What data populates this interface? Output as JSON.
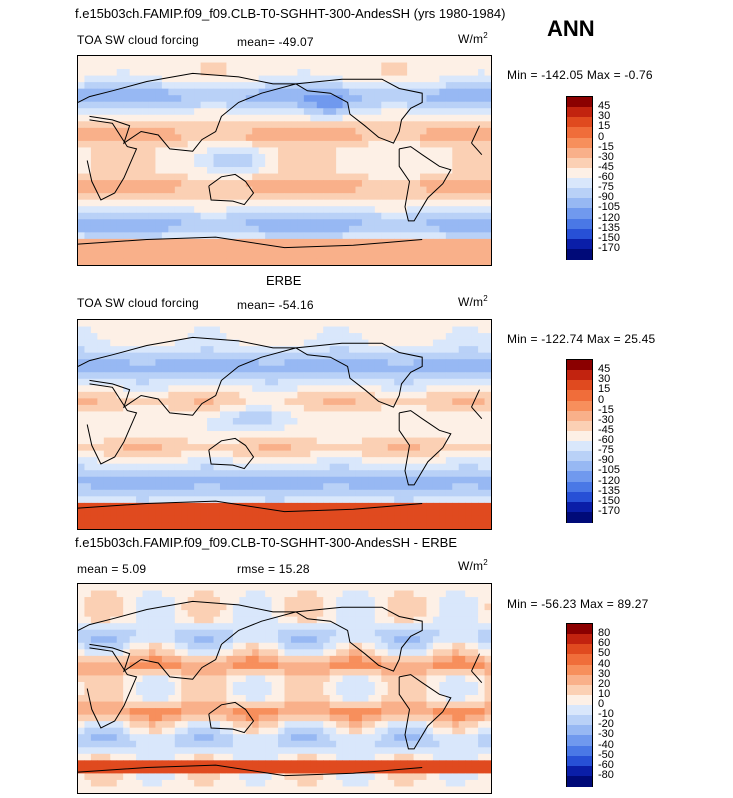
{
  "header": {
    "title": "f.e15b03ch.FAMIP.f09_f09.CLB-T0-SGHHT-300-AndesSH (yrs 1980-1984)",
    "season": "ANN"
  },
  "chart_data": [
    {
      "type": "heatmap",
      "dataset": "f.e15b03ch.FAMIP.f09_f09.CLB-T0-SGHHT-300-AndesSH (yrs 1980-1984)",
      "variable": "TOA SW cloud forcing",
      "units_base": "W/m",
      "units_exp": "2",
      "stats_text": "mean= -49.07",
      "minmax_text": "Min = -142.05 Max = -0.76",
      "mean": -49.07,
      "min": -142.05,
      "max": -0.76,
      "colorbar_levels": [
        "45",
        "30",
        "15",
        "0",
        "-15",
        "-30",
        "-45",
        "-60",
        "-75",
        "-90",
        "-105",
        "-120",
        "-135",
        "-150",
        "-170"
      ],
      "colorbar_colors": [
        "#8b0000",
        "#c2230f",
        "#e04a1f",
        "#f06d3a",
        "#f78f5c",
        "#f9b08a",
        "#fbd0b4",
        "#fdf0e6",
        "#d9e7fb",
        "#b9d1f7",
        "#97b8f3",
        "#7099ee",
        "#4a78e6",
        "#2750d6",
        "#0a1ea8",
        "#000a78"
      ],
      "field_pattern": "model"
    },
    {
      "type": "heatmap",
      "dataset": "ERBE",
      "variable": "TOA SW cloud forcing",
      "units_base": "W/m",
      "units_exp": "2",
      "stats_text": "mean= -54.16",
      "minmax_text": "Min = -122.74 Max = 25.45",
      "mean": -54.16,
      "min": -122.74,
      "max": 25.45,
      "colorbar_levels": [
        "45",
        "30",
        "15",
        "0",
        "-15",
        "-30",
        "-45",
        "-60",
        "-75",
        "-90",
        "-105",
        "-120",
        "-135",
        "-150",
        "-170"
      ],
      "colorbar_colors": [
        "#8b0000",
        "#c2230f",
        "#e04a1f",
        "#f06d3a",
        "#f78f5c",
        "#f9b08a",
        "#fbd0b4",
        "#fdf0e6",
        "#d9e7fb",
        "#b9d1f7",
        "#97b8f3",
        "#7099ee",
        "#4a78e6",
        "#2750d6",
        "#0a1ea8",
        "#000a78"
      ],
      "field_pattern": "obs"
    },
    {
      "type": "heatmap",
      "dataset": "f.e15b03ch.FAMIP.f09_f09.CLB-T0-SGHHT-300-AndesSH - ERBE",
      "variable": "difference",
      "units_base": "W/m",
      "units_exp": "2",
      "mean_text": "mean = 5.09",
      "rmse_text": "rmse = 15.28",
      "minmax_text": "Min = -56.23 Max = 89.27",
      "mean": 5.09,
      "rmse": 15.28,
      "min": -56.23,
      "max": 89.27,
      "colorbar_levels": [
        "80",
        "60",
        "50",
        "40",
        "30",
        "20",
        "10",
        "0",
        "-10",
        "-20",
        "-30",
        "-40",
        "-50",
        "-60",
        "-80"
      ],
      "colorbar_colors": [
        "#8b0000",
        "#c2230f",
        "#e04a1f",
        "#f06d3a",
        "#f78f5c",
        "#f9b08a",
        "#fbd0b4",
        "#fdf0e6",
        "#d9e7fb",
        "#b9d1f7",
        "#97b8f3",
        "#7099ee",
        "#4a78e6",
        "#2750d6",
        "#0a1ea8",
        "#000a78"
      ],
      "field_pattern": "diff"
    }
  ]
}
